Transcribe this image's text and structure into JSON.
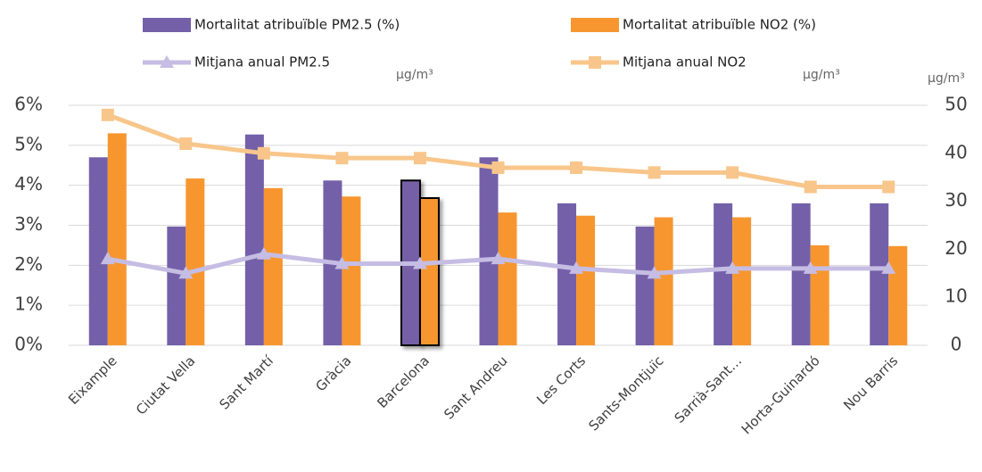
{
  "chart_data": {
    "type": "bar-line",
    "categories": [
      "Eixample",
      "Ciutat Vella",
      "Sant Martí",
      "Gràcia",
      "Barcelona",
      "Sant Andreu",
      "Les Corts",
      "Sants-Montjuïc",
      "Sarrià-Sant…",
      "Horta-Guinardó",
      "Nou Barris"
    ],
    "highlight": "Barcelona",
    "series": [
      {
        "name": "Mortalitat atribuïble PM2.5 (%)",
        "kind": "bar",
        "color": "#7460a8",
        "values": [
          4.7,
          2.97,
          5.27,
          4.12,
          4.12,
          4.7,
          3.55,
          2.97,
          3.55,
          3.55,
          3.55
        ]
      },
      {
        "name": "Mortalitat atribuïble NO2 (%)",
        "kind": "bar",
        "color": "#f7962f",
        "values": [
          5.3,
          4.17,
          3.93,
          3.72,
          3.68,
          3.32,
          3.24,
          3.2,
          3.2,
          2.5,
          2.48
        ]
      },
      {
        "name": "Mitjana anual PM2.5",
        "kind": "line",
        "marker": "triangle",
        "axis": "y2",
        "color": "#c5bde3",
        "values": [
          18,
          15,
          19,
          17,
          17,
          18,
          16,
          15,
          16,
          16,
          16
        ]
      },
      {
        "name": "Mitjana anual NO2",
        "kind": "line",
        "marker": "square",
        "axis": "y2",
        "color": "#f8c68b",
        "values": [
          48,
          42,
          40,
          39,
          39,
          37,
          37,
          36,
          36,
          33,
          33
        ]
      }
    ],
    "units": [
      "µg/m³",
      "µg/m³",
      "µg/m³"
    ],
    "ylim": [
      0,
      6
    ],
    "yticks": [
      {
        "value": 0,
        "label": "0%"
      },
      {
        "value": 1,
        "label": "1%"
      },
      {
        "value": 2,
        "label": "2%"
      },
      {
        "value": 3,
        "label": "3%"
      },
      {
        "value": 4,
        "label": "4%"
      },
      {
        "value": 5,
        "label": "5%"
      },
      {
        "value": 6,
        "label": "6%"
      }
    ],
    "y2lim": [
      0,
      60
    ],
    "y2ticks": [
      0,
      10,
      20,
      30,
      40,
      50
    ]
  }
}
